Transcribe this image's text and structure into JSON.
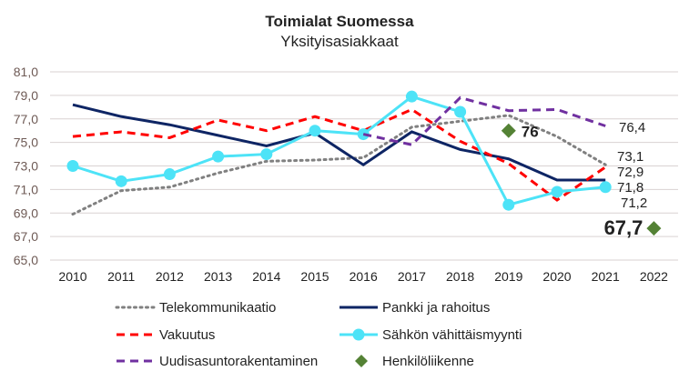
{
  "chart_data": {
    "type": "line",
    "title": "Toimialat Suomessa",
    "subtitle": "Yksityisasiakkaat",
    "x": [
      "2010",
      "2011",
      "2012",
      "2013",
      "2014",
      "2015",
      "2016",
      "2017",
      "2018",
      "2019",
      "2020",
      "2021",
      "2022"
    ],
    "ylim": [
      65,
      81
    ],
    "yticks": [
      "65,0",
      "67,0",
      "69,0",
      "71,0",
      "73,0",
      "75,0",
      "77,0",
      "79,0",
      "81,0"
    ],
    "grid": true,
    "legend_placement": "bottom",
    "series": [
      {
        "name": "Telekommunikaatio",
        "color": "#808080",
        "style": "dotted",
        "values": [
          68.9,
          70.9,
          71.2,
          72.4,
          73.4,
          73.5,
          73.7,
          76.3,
          76.8,
          77.3,
          75.5,
          73.1,
          null
        ],
        "end_label": "73,1"
      },
      {
        "name": "Pankki ja rahoitus",
        "color": "#0e2564",
        "style": "solid",
        "values": [
          78.2,
          77.2,
          76.5,
          75.6,
          74.7,
          75.8,
          73.1,
          75.9,
          74.4,
          73.6,
          71.8,
          71.8,
          null
        ],
        "end_label": "71,8"
      },
      {
        "name": "Vakuutus",
        "color": "#ff0000",
        "style": "dashed",
        "values": [
          75.5,
          75.9,
          75.4,
          76.9,
          76.0,
          77.2,
          76.0,
          77.8,
          75.1,
          73.2,
          70.1,
          72.9,
          null
        ],
        "end_label": "72,9"
      },
      {
        "name": "Sähkön vähittäismyynti",
        "color": "#4de3f7",
        "style": "marker",
        "values": [
          73.0,
          71.7,
          72.3,
          73.8,
          74.0,
          76.0,
          75.7,
          78.9,
          77.6,
          69.7,
          70.8,
          71.2,
          null
        ],
        "end_label": "71,2"
      },
      {
        "name": "Uudisasuntorakentaminen",
        "color": "#7030a0",
        "style": "dashed",
        "values": [
          null,
          null,
          null,
          null,
          null,
          null,
          75.7,
          74.8,
          78.8,
          77.7,
          77.8,
          76.4,
          null
        ],
        "end_label": "76,4"
      },
      {
        "name": "Henkilöliikenne",
        "color": "#548235",
        "style": "diamond",
        "values": [
          null,
          null,
          null,
          null,
          null,
          null,
          null,
          null,
          null,
          76,
          null,
          null,
          67.7
        ],
        "point_labels": [
          "76",
          "67,7"
        ]
      }
    ]
  }
}
